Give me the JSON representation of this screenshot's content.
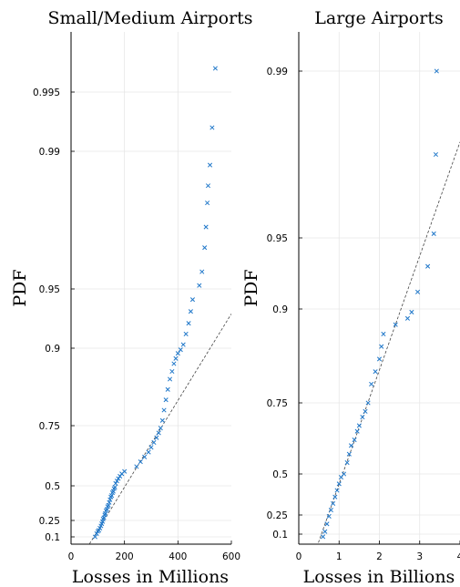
{
  "chart_data": [
    {
      "type": "scatter",
      "title": "Small/Medium Airports",
      "xlabel": "Losses in Millions",
      "ylabel": "PDF",
      "xlim": [
        0,
        600
      ],
      "ytick_values": [
        0.1,
        0.25,
        0.5,
        0.75,
        0.9,
        0.95,
        0.99,
        0.995
      ],
      "ytick_labels": [
        "0.1",
        "0.25",
        "0.5",
        "0.75",
        "0.9",
        "0.95",
        "0.99",
        "0.995"
      ],
      "xtick_values": [
        0,
        200,
        400,
        600
      ],
      "xtick_labels": [
        "0",
        "200",
        "400",
        "600"
      ],
      "grid": true,
      "marker": "x",
      "series_color": "#1f77c9",
      "fit_line_color": "#444444",
      "points": [
        [
          90,
          0.1
        ],
        [
          96,
          0.13
        ],
        [
          100,
          0.15
        ],
        [
          104,
          0.16
        ],
        [
          108,
          0.18
        ],
        [
          112,
          0.2
        ],
        [
          115,
          0.22
        ],
        [
          118,
          0.24
        ],
        [
          120,
          0.26
        ],
        [
          123,
          0.27
        ],
        [
          126,
          0.29
        ],
        [
          128,
          0.3
        ],
        [
          131,
          0.32
        ],
        [
          134,
          0.33
        ],
        [
          137,
          0.35
        ],
        [
          140,
          0.36
        ],
        [
          143,
          0.38
        ],
        [
          146,
          0.4
        ],
        [
          149,
          0.42
        ],
        [
          152,
          0.43
        ],
        [
          155,
          0.45
        ],
        [
          158,
          0.46
        ],
        [
          161,
          0.48
        ],
        [
          164,
          0.49
        ],
        [
          167,
          0.51
        ],
        [
          172,
          0.52
        ],
        [
          177,
          0.53
        ],
        [
          183,
          0.54
        ],
        [
          190,
          0.55
        ],
        [
          200,
          0.56
        ],
        [
          245,
          0.58
        ],
        [
          260,
          0.6
        ],
        [
          275,
          0.62
        ],
        [
          290,
          0.64
        ],
        [
          300,
          0.66
        ],
        [
          310,
          0.68
        ],
        [
          320,
          0.7
        ],
        [
          328,
          0.72
        ],
        [
          335,
          0.74
        ],
        [
          342,
          0.76
        ],
        [
          348,
          0.78
        ],
        [
          355,
          0.8
        ],
        [
          362,
          0.82
        ],
        [
          370,
          0.84
        ],
        [
          378,
          0.855
        ],
        [
          385,
          0.87
        ],
        [
          392,
          0.88
        ],
        [
          400,
          0.89
        ],
        [
          410,
          0.897
        ],
        [
          420,
          0.903
        ],
        [
          430,
          0.912
        ],
        [
          440,
          0.921
        ],
        [
          448,
          0.931
        ],
        [
          455,
          0.941
        ],
        [
          480,
          0.951
        ],
        [
          490,
          0.955
        ],
        [
          500,
          0.962
        ],
        [
          505,
          0.968
        ],
        [
          510,
          0.975
        ],
        [
          513,
          0.98
        ],
        [
          520,
          0.986
        ],
        [
          528,
          0.992
        ],
        [
          540,
          0.997
        ]
      ],
      "fit_line": [
        [
          60,
          0.0
        ],
        [
          600,
          0.929
        ]
      ]
    },
    {
      "type": "scatter",
      "title": "Large Airports",
      "xlabel": "Losses in Billions",
      "ylabel": "PDF",
      "xlim": [
        0,
        4
      ],
      "ytick_values": [
        0.1,
        0.25,
        0.5,
        0.75,
        0.9,
        0.95,
        0.99
      ],
      "ytick_labels": [
        "0.1",
        "0.25",
        "0.5",
        "0.75",
        "0.9",
        "0.95",
        "0.99"
      ],
      "xtick_values": [
        0,
        1,
        2,
        3,
        4
      ],
      "xtick_labels": [
        "0",
        "1",
        "2",
        "3",
        "4"
      ],
      "grid": true,
      "marker": "x",
      "series_color": "#1f77c9",
      "fit_line_color": "#444444",
      "points": [
        [
          0.6,
          0.08
        ],
        [
          0.65,
          0.12
        ],
        [
          0.7,
          0.18
        ],
        [
          0.75,
          0.24
        ],
        [
          0.8,
          0.28
        ],
        [
          0.85,
          0.32
        ],
        [
          0.9,
          0.36
        ],
        [
          0.95,
          0.4
        ],
        [
          1.0,
          0.44
        ],
        [
          1.05,
          0.48
        ],
        [
          1.12,
          0.5
        ],
        [
          1.2,
          0.54
        ],
        [
          1.25,
          0.57
        ],
        [
          1.3,
          0.6
        ],
        [
          1.38,
          0.62
        ],
        [
          1.45,
          0.65
        ],
        [
          1.5,
          0.67
        ],
        [
          1.58,
          0.7
        ],
        [
          1.65,
          0.72
        ],
        [
          1.72,
          0.75
        ],
        [
          1.8,
          0.78
        ],
        [
          1.9,
          0.8
        ],
        [
          2.0,
          0.82
        ],
        [
          2.05,
          0.84
        ],
        [
          2.1,
          0.86
        ],
        [
          2.4,
          0.875
        ],
        [
          2.7,
          0.885
        ],
        [
          2.8,
          0.895
        ],
        [
          2.95,
          0.912
        ],
        [
          3.2,
          0.93
        ],
        [
          3.35,
          0.951
        ],
        [
          3.4,
          0.97
        ],
        [
          3.42,
          0.99
        ]
      ],
      "fit_line": [
        [
          0.45,
          0.0
        ],
        [
          4.0,
          0.973
        ]
      ]
    }
  ]
}
